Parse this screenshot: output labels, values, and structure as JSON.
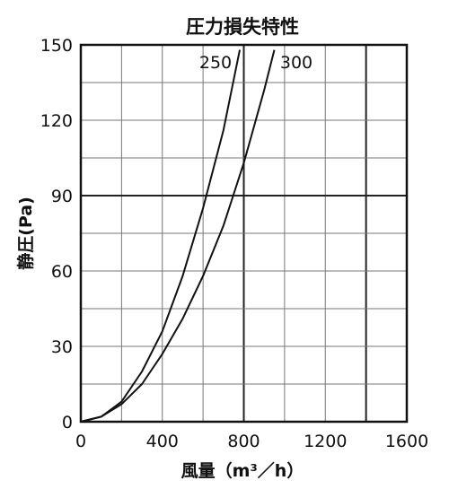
{
  "chart_data": {
    "type": "line",
    "title": "圧力損失特性",
    "xlabel": "風量（m³／h）",
    "ylabel": "静圧(Pa)",
    "xlim": [
      0,
      1600
    ],
    "ylim": [
      0,
      150
    ],
    "x_ticks": [
      0,
      400,
      800,
      1200,
      1600
    ],
    "x_tick_labels": [
      "0",
      "400",
      "800",
      "1200",
      "1600"
    ],
    "y_ticks": [
      0,
      30,
      60,
      90,
      120,
      150
    ],
    "y_tick_labels": [
      "0",
      "30",
      "60",
      "90",
      "120",
      "150"
    ],
    "grid": true,
    "series": [
      {
        "name": "250",
        "x": [
          0,
          100,
          200,
          300,
          400,
          500,
          600,
          700,
          780
        ],
        "y": [
          0,
          2,
          8,
          20,
          36,
          58,
          85,
          116,
          148
        ]
      },
      {
        "name": "300",
        "x": [
          0,
          100,
          200,
          300,
          400,
          500,
          600,
          700,
          800,
          900,
          950
        ],
        "y": [
          0,
          2,
          7,
          15,
          27,
          41,
          58,
          78,
          103,
          132,
          148
        ]
      }
    ]
  }
}
